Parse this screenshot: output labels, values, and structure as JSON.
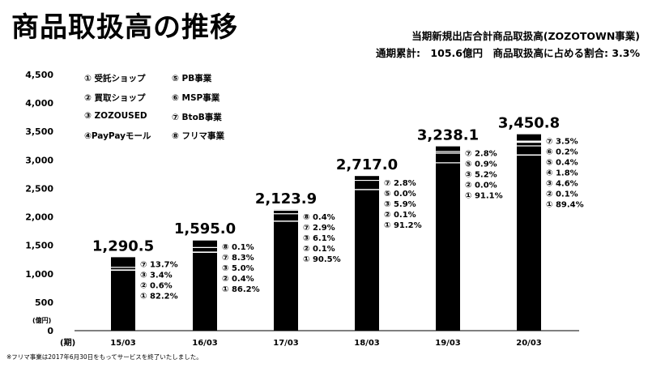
{
  "title": "商品取扱高の推移",
  "subtitle_line1": "当期新規出店合計商品取扱高(ZOZOTOWN事業)",
  "subtitle_line2": "通期累計:　105.6億円　商品取扱高に占める割合: 3.3%",
  "footnote": "※フリマ事業は2017年6月30日をもってサービスを終了いたしました。",
  "legend": [
    "① 受託ショップ",
    "② 買取ショップ",
    "③ ZOZOUSED",
    "④PayPayモール",
    "⑤ PB事業",
    "⑥ MSP事業",
    "⑦ BtoB事業",
    "⑧ フリマ事業"
  ],
  "chart_data": {
    "type": "bar",
    "ylabel": "(億円)",
    "xlabel": "(期)",
    "ylim": [
      0,
      4500
    ],
    "yticks": [
      "0",
      "500",
      "1,000",
      "1,500",
      "2,000",
      "2,500",
      "3,000",
      "3,500",
      "4,000",
      "4,500"
    ],
    "categories": [
      "15/03",
      "16/03",
      "17/03",
      "18/03",
      "19/03",
      "20/03"
    ],
    "values": [
      1290.5,
      1595.0,
      2123.9,
      2717.0,
      3238.1,
      3450.8
    ],
    "value_labels": [
      "1,290.5",
      "1,595.0",
      "2,123.9",
      "2,717.0",
      "3,238.1",
      "3,450.8"
    ],
    "breakdowns": [
      [
        {
          "label": "⑦ 13.7%",
          "pct": 13.7
        },
        {
          "label": "③ 3.4%",
          "pct": 3.4
        },
        {
          "label": "② 0.6%",
          "pct": 0.6
        },
        {
          "label": "① 82.2%",
          "pct": 82.2
        }
      ],
      [
        {
          "label": "⑧ 0.1%",
          "pct": 0.1
        },
        {
          "label": "⑦ 8.3%",
          "pct": 8.3
        },
        {
          "label": "③ 5.0%",
          "pct": 5.0
        },
        {
          "label": "② 0.4%",
          "pct": 0.4
        },
        {
          "label": "① 86.2%",
          "pct": 86.2
        }
      ],
      [
        {
          "label": "⑧ 0.4%",
          "pct": 0.4
        },
        {
          "label": "⑦ 2.9%",
          "pct": 2.9
        },
        {
          "label": "③ 6.1%",
          "pct": 6.1
        },
        {
          "label": "② 0.1%",
          "pct": 0.1
        },
        {
          "label": "① 90.5%",
          "pct": 90.5
        }
      ],
      [
        {
          "label": "⑦ 2.8%",
          "pct": 2.8
        },
        {
          "label": "⑤ 0.0%",
          "pct": 0.0
        },
        {
          "label": "③ 5.9%",
          "pct": 5.9
        },
        {
          "label": "② 0.1%",
          "pct": 0.1
        },
        {
          "label": "① 91.2%",
          "pct": 91.2
        }
      ],
      [
        {
          "label": "⑦ 2.8%",
          "pct": 2.8
        },
        {
          "label": "⑤ 0.9%",
          "pct": 0.9
        },
        {
          "label": "③ 5.2%",
          "pct": 5.2
        },
        {
          "label": "② 0.0%",
          "pct": 0.0
        },
        {
          "label": "① 91.1%",
          "pct": 91.1
        }
      ],
      [
        {
          "label": "⑦ 3.5%",
          "pct": 3.5
        },
        {
          "label": "⑥ 0.2%",
          "pct": 0.2
        },
        {
          "label": "⑤ 0.4%",
          "pct": 0.4
        },
        {
          "label": "④ 1.8%",
          "pct": 1.8
        },
        {
          "label": "③ 4.6%",
          "pct": 4.6
        },
        {
          "label": "② 0.1%",
          "pct": 0.1
        },
        {
          "label": "① 89.4%",
          "pct": 89.4
        }
      ]
    ],
    "bar_color": "#000000",
    "separator_color": "#ffffff",
    "grid": false
  }
}
